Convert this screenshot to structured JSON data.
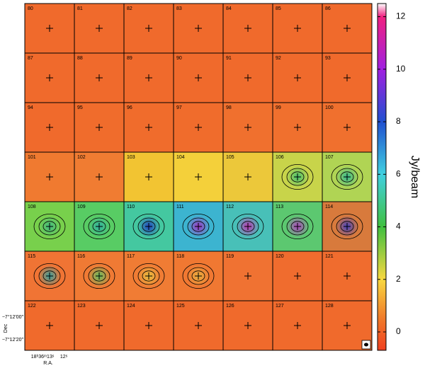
{
  "chart_data": {
    "type": "channel-map",
    "panels": [
      {
        "label": "80",
        "color": "#f06a2c"
      },
      {
        "label": "81",
        "color": "#f06a2c"
      },
      {
        "label": "82",
        "color": "#f06a2c"
      },
      {
        "label": "83",
        "color": "#f06a2c"
      },
      {
        "label": "84",
        "color": "#f06a2c"
      },
      {
        "label": "85",
        "color": "#f06a2c"
      },
      {
        "label": "86",
        "color": "#f06a2c"
      },
      {
        "label": "87",
        "color": "#f06a2c"
      },
      {
        "label": "88",
        "color": "#f06a2c"
      },
      {
        "label": "89",
        "color": "#f06a2c"
      },
      {
        "label": "90",
        "color": "#f06a2c"
      },
      {
        "label": "91",
        "color": "#f06a2c"
      },
      {
        "label": "92",
        "color": "#f06a2c"
      },
      {
        "label": "93",
        "color": "#f06a2c"
      },
      {
        "label": "94",
        "color": "#f06a2c"
      },
      {
        "label": "95",
        "color": "#f06c2c"
      },
      {
        "label": "96",
        "color": "#f06c2c"
      },
      {
        "label": "97",
        "color": "#f06c2c"
      },
      {
        "label": "98",
        "color": "#f0702e"
      },
      {
        "label": "99",
        "color": "#f0702e"
      },
      {
        "label": "100",
        "color": "#f0702e"
      },
      {
        "label": "101",
        "color": "#f07a30"
      },
      {
        "label": "102",
        "color": "#f07c32"
      },
      {
        "label": "103",
        "color": "#f2c432"
      },
      {
        "label": "104",
        "color": "#f4d03a"
      },
      {
        "label": "105",
        "color": "#ecc83a"
      },
      {
        "label": "106",
        "color": "#c8d44a",
        "core": "#40c070"
      },
      {
        "label": "107",
        "color": "#b0d454",
        "core": "#30b890"
      },
      {
        "label": "108",
        "color": "#78d04c",
        "core": "#40b880"
      },
      {
        "label": "109",
        "color": "#58cc64",
        "core": "#30b0a0"
      },
      {
        "label": "110",
        "color": "#44c8a0",
        "core": "#2040c0"
      },
      {
        "label": "111",
        "color": "#3cb4d0",
        "core": "#a030c0"
      },
      {
        "label": "112",
        "color": "#48c0b8",
        "core": "#c030b0"
      },
      {
        "label": "113",
        "color": "#5cc870",
        "core": "#b040c0"
      },
      {
        "label": "114",
        "color": "#d87a3c",
        "core": "#4040c0"
      },
      {
        "label": "115",
        "color": "#f07434",
        "core": "#30a0a0"
      },
      {
        "label": "116",
        "color": "#f07a34",
        "core": "#60c060"
      },
      {
        "label": "117",
        "color": "#f07c34",
        "core": "#e8c040"
      },
      {
        "label": "118",
        "color": "#f07832",
        "core": "#e8b040"
      },
      {
        "label": "119",
        "color": "#f07232"
      },
      {
        "label": "120",
        "color": "#f06c2e"
      },
      {
        "label": "121",
        "color": "#f06c2e"
      },
      {
        "label": "122",
        "color": "#f06a2c"
      },
      {
        "label": "123",
        "color": "#f06a2c"
      },
      {
        "label": "124",
        "color": "#f06a2c"
      },
      {
        "label": "125",
        "color": "#f06a2c"
      },
      {
        "label": "126",
        "color": "#f06a2c"
      },
      {
        "label": "127",
        "color": "#f06a2c"
      },
      {
        "label": "128",
        "color": "#f06a2c"
      }
    ],
    "columns": 7,
    "colorbar": {
      "label": "Jy/beam",
      "ylim": [
        -0.7,
        12.5
      ],
      "yticks": [
        0,
        2,
        4,
        6,
        8,
        10,
        12
      ],
      "stops": [
        {
          "value": -0.7,
          "color": "#f04020"
        },
        {
          "value": 0.5,
          "color": "#f07a2a"
        },
        {
          "value": 2,
          "color": "#f8d840"
        },
        {
          "value": 4,
          "color": "#40c040"
        },
        {
          "value": 6,
          "color": "#40d0e0"
        },
        {
          "value": 8,
          "color": "#2050d0"
        },
        {
          "value": 10,
          "color": "#a020e0"
        },
        {
          "value": 12,
          "color": "#f02080"
        },
        {
          "value": 12.5,
          "color": "#ffffff"
        }
      ]
    },
    "y_axis": {
      "label": "Dec",
      "ticks": [
        "−7°12′00″",
        "−7°12′20″"
      ]
    },
    "x_axis": {
      "label": "R.A.",
      "ticks": [
        "18ʰ36ᵐ13ˢ",
        "12ˢ"
      ]
    }
  }
}
